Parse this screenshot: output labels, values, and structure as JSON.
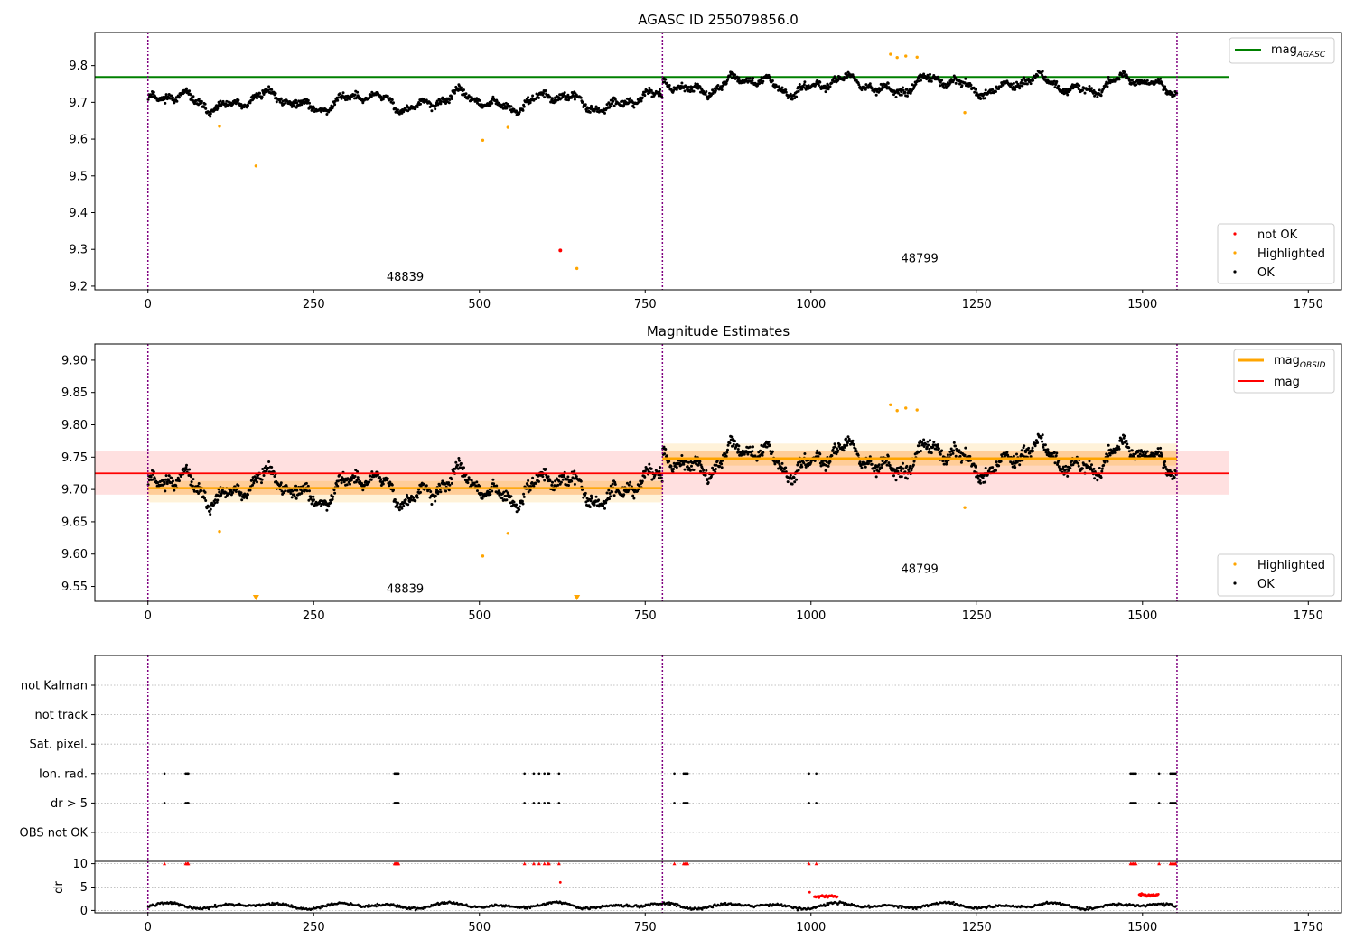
{
  "chart_data": [
    {
      "type": "scatter",
      "title": "AGASC ID 255079856.0",
      "xlim": [
        -80,
        1800
      ],
      "ylim": [
        9.19,
        9.89
      ],
      "x_ticks": [
        0,
        250,
        500,
        750,
        1000,
        1250,
        1500,
        1750
      ],
      "x_tick_labels": [
        "0",
        "250",
        "500",
        "750",
        "1000",
        "1250",
        "1500",
        "1750"
      ],
      "y_ticks": [
        9.2,
        9.3,
        9.4,
        9.5,
        9.6,
        9.7,
        9.8
      ],
      "y_tick_labels": [
        "9.2",
        "9.3",
        "9.4",
        "9.5",
        "9.6",
        "9.7",
        "9.8"
      ],
      "obs_boundaries": [
        0,
        776,
        1552
      ],
      "obs_labels": [
        {
          "x": 388,
          "y": 9.215,
          "text": "48839"
        },
        {
          "x": 1164,
          "y": 9.265,
          "text": "48799"
        }
      ],
      "mag_agasc": {
        "value": 9.769,
        "x_range": [
          0,
          1630
        ]
      },
      "segments": [
        {
          "x_start": 0,
          "x_end": 776,
          "base": 9.702,
          "amplitude": 0.032
        },
        {
          "x_start": 776,
          "x_end": 1552,
          "base": 9.747,
          "amplitude": 0.032
        }
      ],
      "highlighted_points": [
        {
          "x": 108,
          "y": 9.635
        },
        {
          "x": 163,
          "y": 9.527
        },
        {
          "x": 505,
          "y": 9.597
        },
        {
          "x": 543,
          "y": 9.632
        },
        {
          "x": 647,
          "y": 9.248
        },
        {
          "x": 1120,
          "y": 9.831
        },
        {
          "x": 1130,
          "y": 9.822
        },
        {
          "x": 1143,
          "y": 9.826
        },
        {
          "x": 1160,
          "y": 9.823
        },
        {
          "x": 1232,
          "y": 9.672
        }
      ],
      "not_ok_points": [
        {
          "x": 622,
          "y": 9.297
        }
      ],
      "legend_top": [
        {
          "label": "mag",
          "subscript": "AGASC",
          "color": "#008000"
        }
      ],
      "legend_bottom": [
        {
          "label": "not OK",
          "color": "#ff0000"
        },
        {
          "label": "Highlighted",
          "color": "#ffa500"
        },
        {
          "label": "OK",
          "color": "#000000"
        }
      ]
    },
    {
      "type": "scatter",
      "title": "Magnitude Estimates",
      "xlim": [
        -80,
        1800
      ],
      "ylim": [
        9.527,
        9.925
      ],
      "x_ticks": [
        0,
        250,
        500,
        750,
        1000,
        1250,
        1500,
        1750
      ],
      "x_tick_labels": [
        "0",
        "250",
        "500",
        "750",
        "1000",
        "1250",
        "1500",
        "1750"
      ],
      "y_ticks": [
        9.55,
        9.6,
        9.65,
        9.7,
        9.75,
        9.8,
        9.85,
        9.9
      ],
      "y_tick_labels": [
        "9.55",
        "9.60",
        "9.65",
        "9.70",
        "9.75",
        "9.80",
        "9.85",
        "9.90"
      ],
      "obs_boundaries": [
        0,
        776,
        1552
      ],
      "obs_labels": [
        {
          "x": 388,
          "y": 9.54,
          "text": "48839"
        },
        {
          "x": 1164,
          "y": 9.571,
          "text": "48799"
        }
      ],
      "mag": {
        "value": 9.725,
        "band": [
          9.692,
          9.76
        ],
        "x_range": [
          0,
          1630
        ]
      },
      "mag_obsid": [
        {
          "x_start": 0,
          "x_end": 776,
          "value": 9.702,
          "band_inner": [
            9.692,
            9.713
          ],
          "band_outer": [
            9.68,
            9.725
          ]
        },
        {
          "x_start": 776,
          "x_end": 1552,
          "value": 9.748,
          "band_inner": [
            9.737,
            9.759
          ],
          "band_outer": [
            9.726,
            9.771
          ]
        }
      ],
      "highlighted_points": [
        {
          "x": 108,
          "y": 9.635
        },
        {
          "x": 505,
          "y": 9.597
        },
        {
          "x": 543,
          "y": 9.632
        },
        {
          "x": 1120,
          "y": 9.831
        },
        {
          "x": 1130,
          "y": 9.822
        },
        {
          "x": 1143,
          "y": 9.826
        },
        {
          "x": 1160,
          "y": 9.823
        },
        {
          "x": 1232,
          "y": 9.672
        }
      ],
      "clipped_markers": [
        {
          "x": 163
        },
        {
          "x": 647
        }
      ],
      "legend_top": [
        {
          "label": "mag",
          "subscript": "OBSID",
          "color": "#ffa500"
        },
        {
          "label": "mag",
          "subscript": "",
          "color": "#ff0000"
        }
      ],
      "legend_bottom": [
        {
          "label": "Highlighted",
          "color": "#ffa500"
        },
        {
          "label": "OK",
          "color": "#000000"
        }
      ]
    },
    {
      "type": "scatter",
      "title": "",
      "xlim": [
        -80,
        1800
      ],
      "flag_labels": [
        "not Kalman",
        "not track",
        "Sat. pixel.",
        "Ion. rad.",
        "dr > 5",
        "OBS not OK"
      ],
      "flag_points": {
        "Ion. rad.": [
          25,
          57,
          59,
          60,
          61,
          372,
          373,
          374,
          375,
          376,
          377,
          378,
          568,
          582,
          590,
          598,
          603,
          605,
          620,
          794,
          808,
          810,
          812,
          814,
          997,
          1008,
          1482,
          1484,
          1486,
          1488,
          1490,
          1525,
          1542,
          1544,
          1546,
          1548,
          1550
        ],
        "dr > 5": [
          25,
          57,
          59,
          60,
          61,
          372,
          373,
          374,
          375,
          376,
          377,
          378,
          568,
          582,
          590,
          598,
          603,
          605,
          620,
          794,
          808,
          810,
          812,
          814,
          997,
          1008,
          1482,
          1484,
          1486,
          1488,
          1490,
          1525,
          1542,
          1544,
          1546,
          1548,
          1550
        ]
      },
      "dr_axis": {
        "ylabel": "dr",
        "ylim": [
          -0.5,
          10.5
        ],
        "y_ticks": [
          0,
          5,
          10
        ],
        "y_tick_labels": [
          "0",
          "5",
          "10"
        ],
        "capped_points_x": [
          25,
          57,
          59,
          60,
          61,
          372,
          373,
          374,
          375,
          376,
          377,
          378,
          568,
          582,
          590,
          598,
          603,
          605,
          620,
          794,
          808,
          810,
          812,
          814,
          997,
          1008,
          1482,
          1484,
          1486,
          1488,
          1490,
          1525,
          1542,
          1544,
          1546,
          1548,
          1550
        ],
        "extra_red_points": [
          {
            "x": 622,
            "y": 6
          },
          {
            "x": 998,
            "y": 3.9
          }
        ],
        "red_clusters": [
          {
            "x_start": 1005,
            "x_end": 1040,
            "y": 3.0
          },
          {
            "x_start": 1495,
            "x_end": 1525,
            "y": 3.3
          }
        ]
      },
      "x_ticks": [
        0,
        250,
        500,
        750,
        1000,
        1250,
        1500,
        1750
      ],
      "x_tick_labels": [
        "0",
        "250",
        "500",
        "750",
        "1000",
        "1250",
        "1500",
        "1750"
      ],
      "obs_boundaries": [
        0,
        776,
        1552
      ]
    }
  ],
  "colors": {
    "ok": "#000000",
    "highlighted": "#ffa500",
    "not_ok": "#ff0000",
    "agasc": "#008000",
    "mag": "#ff0000",
    "mag_obsid": "#ffa500",
    "boundary": "#800080",
    "grid": "#b0b0b0"
  }
}
